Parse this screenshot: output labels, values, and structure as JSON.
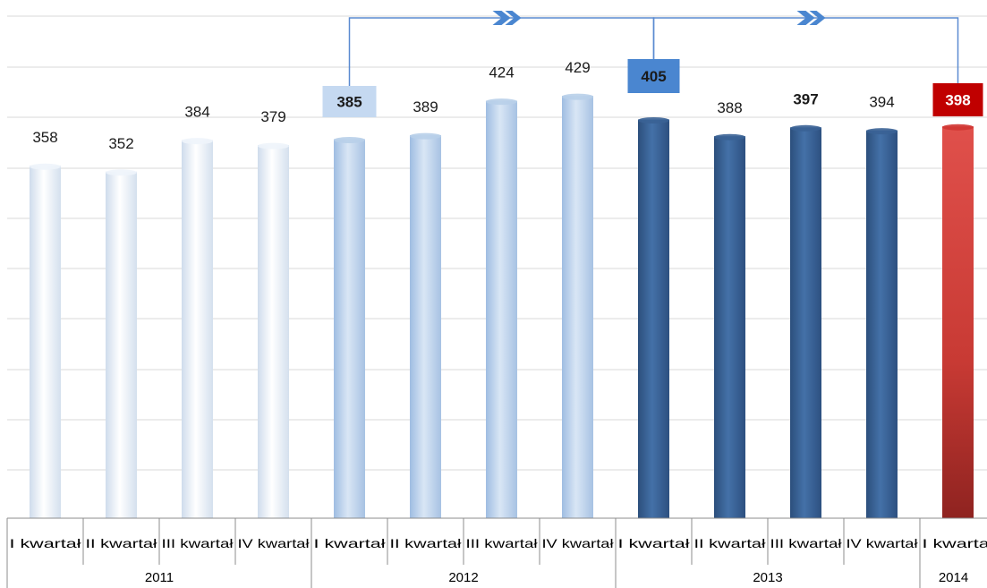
{
  "chart_data": {
    "type": "bar",
    "categories": [
      "I kwartał",
      "II kwartał",
      "III kwartał",
      "IV kwartał",
      "I kwartał",
      "II kwartał",
      "III kwartał",
      "IV kwartał",
      "I kwartał",
      "II kwartał",
      "III kwartał",
      "IV kwartał",
      "I kwartał"
    ],
    "values": [
      358,
      352,
      384,
      379,
      385,
      389,
      424,
      429,
      405,
      388,
      397,
      394,
      398
    ],
    "years": [
      {
        "label": "2011",
        "start": 0,
        "count": 4
      },
      {
        "label": "2012",
        "start": 4,
        "count": 4
      },
      {
        "label": "2013",
        "start": 8,
        "count": 4
      },
      {
        "label": "2014",
        "start": 12,
        "count": 1
      }
    ],
    "highlighted_values": [
      {
        "index": 4,
        "value": 385,
        "box_color": "#c5d9f1"
      },
      {
        "index": 8,
        "value": 405,
        "box_color": "#4a86d0"
      },
      {
        "index": 12,
        "value": 398,
        "box_color": "#c00000"
      }
    ],
    "bold_values": [
      4,
      8,
      10,
      12
    ],
    "bar_colors": {
      "2011": "#eef4fb",
      "2012": "#b8cfe9",
      "2013": "#3a6295",
      "2014": "#d03532"
    },
    "comparisons": [
      {
        "from_index": 4,
        "to_index": 8
      },
      {
        "from_index": 8,
        "to_index": 12
      }
    ],
    "ylim": [
      0,
      450
    ],
    "grid": true,
    "legend": "none",
    "title": "",
    "xlabel": "",
    "ylabel": ""
  }
}
